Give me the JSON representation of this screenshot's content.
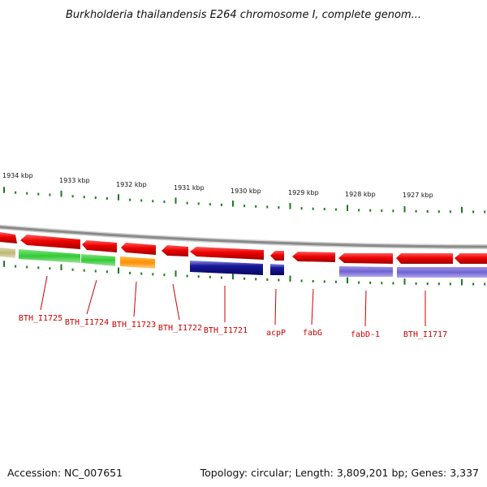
{
  "title": "Burkholderia thailandensis E264 chromosome I, complete genom...",
  "footer": {
    "accession": "Accession: NC_007651",
    "summary": "Topology: circular; Length: 3,809,201 bp; Genes: 3,337"
  },
  "scale_labels": [
    "1934 kbp",
    "1933 kbp",
    "1932 kbp",
    "1931 kbp",
    "1930 kbp",
    "1929 kbp",
    "1928 kbp",
    "1927 kbp"
  ],
  "gene_labels": [
    "BTH_I1725",
    "BTH_I1724",
    "BTH_I1723",
    "BTH_I1722",
    "BTH_I1721",
    "acpP",
    "fabG",
    "fabD-1",
    "BTH_I1717"
  ],
  "colors": {
    "backbone": "#8c8c8c",
    "cds": "#ee1111",
    "tick": "#1e7a1e",
    "label": "#cc0000",
    "green": "#3ecf3e",
    "orange": "#ff9900",
    "khaki": "#c8c48a",
    "navy": "#1a1a8c",
    "lavender": "#7b6fd6"
  }
}
